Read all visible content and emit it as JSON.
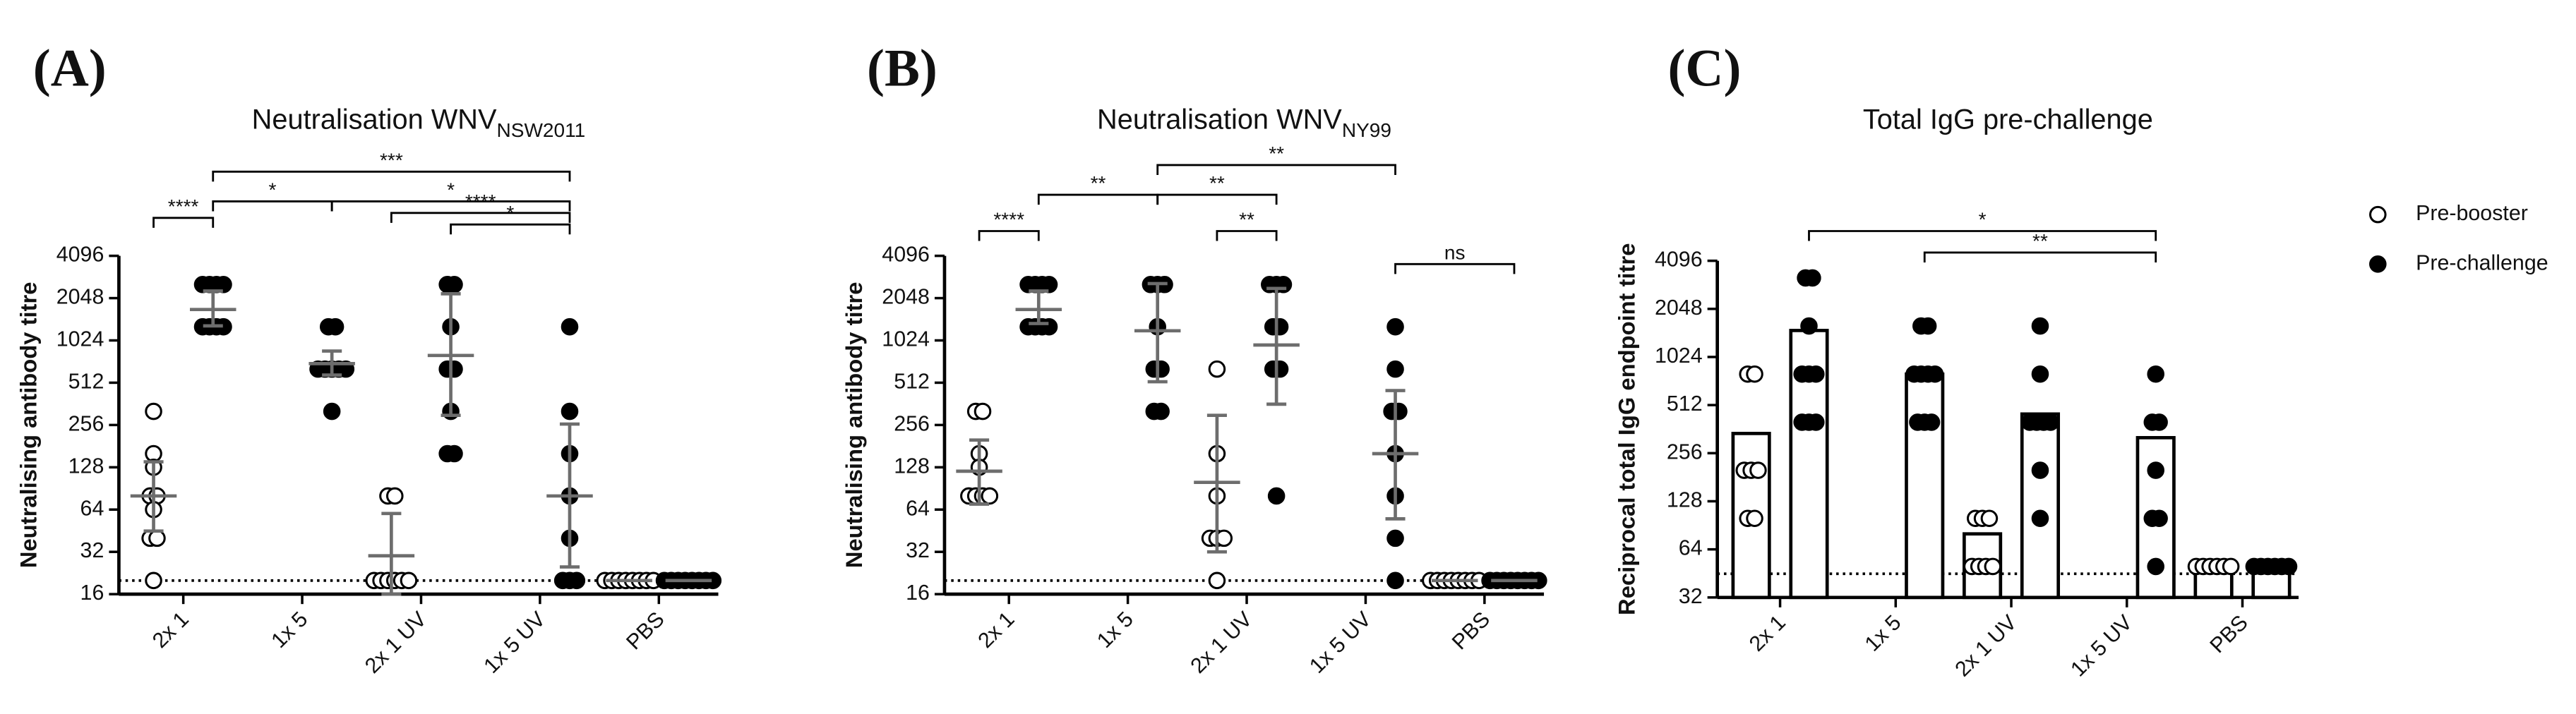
{
  "chart_data": [
    {
      "type": "dot",
      "panel": "(A)",
      "title": "Neutralisation WNV",
      "title_sub": "NSW2011",
      "ylabel": "Neutralising antibody titre",
      "log_base": 2,
      "ylim": [
        16,
        4096
      ],
      "yticks": [
        16,
        32,
        64,
        128,
        256,
        512,
        1024,
        2048,
        4096
      ],
      "categories": [
        "2x 1",
        "1x 5",
        "2x 1 UV",
        "1x 5 UV",
        "PBS"
      ],
      "reference_line": 20,
      "errorbar_color": "#6d6d6d",
      "annotations": [
        "****",
        "***",
        "*",
        "*",
        "****",
        "*"
      ],
      "series": [
        {
          "marker": "open",
          "color": "#000000",
          "points": [
            [
              320,
              160,
              128,
              80,
              80,
              64,
              40,
              40,
              20
            ],
            [],
            [
              80,
              80,
              20,
              20,
              20,
              20,
              20,
              20
            ],
            [],
            [
              20,
              20,
              20,
              20,
              20,
              20,
              20,
              20
            ]
          ],
          "mean": [
            80,
            null,
            30,
            null,
            20
          ],
          "low": [
            45,
            null,
            16,
            null,
            null
          ],
          "high": [
            140,
            null,
            60,
            null,
            null
          ]
        },
        {
          "marker": "filled",
          "color": "#000000",
          "points": [
            [
              2560,
              2560,
              2560,
              2560,
              1280,
              1280,
              1280,
              1280
            ],
            [
              1280,
              1280,
              640,
              640,
              640,
              640,
              640,
              320
            ],
            [
              2560,
              2560,
              1280,
              640,
              640,
              320,
              160,
              160
            ],
            [
              1280,
              320,
              160,
              80,
              40,
              20,
              20,
              20
            ],
            [
              20,
              20,
              20,
              20,
              20,
              20,
              20,
              20
            ]
          ],
          "mean": [
            1700,
            700,
            800,
            80,
            20
          ],
          "low": [
            1300,
            580,
            300,
            25,
            null
          ],
          "high": [
            2300,
            860,
            2200,
            260,
            null
          ]
        }
      ]
    },
    {
      "type": "dot",
      "panel": "(B)",
      "title": "Neutralisation WNV",
      "title_sub": "NY99",
      "ylabel": "Neutralising antibody titre",
      "log_base": 2,
      "ylim": [
        16,
        4096
      ],
      "yticks": [
        16,
        32,
        64,
        128,
        256,
        512,
        1024,
        2048,
        4096
      ],
      "categories": [
        "2x 1",
        "1x 5",
        "2x 1 UV",
        "1x 5 UV",
        "PBS"
      ],
      "reference_line": 20,
      "errorbar_color": "#6d6d6d",
      "annotations": [
        "****",
        "**",
        "**",
        "**",
        "**",
        "ns"
      ],
      "series": [
        {
          "marker": "open",
          "color": "#000000",
          "points": [
            [
              320,
              320,
              160,
              128,
              80,
              80,
              80,
              80
            ],
            [],
            [
              640,
              160,
              80,
              40,
              40,
              40,
              20
            ],
            [],
            [
              20,
              20,
              20,
              20,
              20,
              20,
              20,
              20
            ]
          ],
          "mean": [
            120,
            null,
            100,
            null,
            20
          ],
          "low": [
            70,
            null,
            32,
            null,
            null
          ],
          "high": [
            200,
            null,
            300,
            null,
            null
          ]
        },
        {
          "marker": "filled",
          "color": "#000000",
          "points": [
            [
              2560,
              2560,
              2560,
              2560,
              1280,
              1280,
              1280,
              1280
            ],
            [
              2560,
              2560,
              2560,
              1280,
              640,
              640,
              320,
              320
            ],
            [
              2560,
              2560,
              2560,
              1280,
              1280,
              640,
              640,
              80
            ],
            [
              1280,
              640,
              320,
              320,
              160,
              80,
              40,
              20
            ],
            [
              20,
              20,
              20,
              20,
              20,
              20,
              20,
              20
            ]
          ],
          "mean": [
            1700,
            1200,
            950,
            160,
            20
          ],
          "low": [
            1350,
            520,
            360,
            55,
            null
          ],
          "high": [
            2300,
            2600,
            2400,
            450,
            null
          ]
        }
      ]
    },
    {
      "type": "bardot",
      "panel": "(C)",
      "title": "Total IgG pre-challenge",
      "ylabel": "Reciprocal total IgG endpoint titre",
      "log_base": 2,
      "ylim": [
        32,
        4096
      ],
      "yticks": [
        32,
        64,
        128,
        256,
        512,
        1024,
        2048,
        4096
      ],
      "categories": [
        "2x 1",
        "1x 5",
        "2x 1 UV",
        "1x 5 UV",
        "PBS"
      ],
      "reference_line": 45,
      "legend": "right",
      "annotations": [
        "*",
        "**"
      ],
      "series": [
        {
          "name": "Pre-booster",
          "marker": "open",
          "color": "#000000",
          "values": [
            340,
            null,
            80,
            null,
            50
          ],
          "points": [
            [
              800,
              800,
              200,
              200,
              200,
              100,
              100
            ],
            [],
            [
              100,
              100,
              100,
              50,
              50,
              50,
              50
            ],
            [],
            [
              50,
              50,
              50,
              50,
              50,
              50
            ]
          ]
        },
        {
          "name": "Pre-challenge",
          "marker": "filled",
          "color": "#000000",
          "values": [
            1500,
            800,
            450,
            320,
            50
          ],
          "points": [
            [
              3200,
              3200,
              1600,
              800,
              800,
              800,
              400,
              400,
              400
            ],
            [
              1600,
              1600,
              800,
              800,
              800,
              800,
              400,
              400,
              400
            ],
            [
              1600,
              800,
              400,
              400,
              400,
              400,
              200,
              100
            ],
            [
              800,
              400,
              400,
              200,
              100,
              100,
              50
            ],
            [
              50,
              50,
              50,
              50,
              50,
              50
            ]
          ]
        }
      ]
    }
  ]
}
